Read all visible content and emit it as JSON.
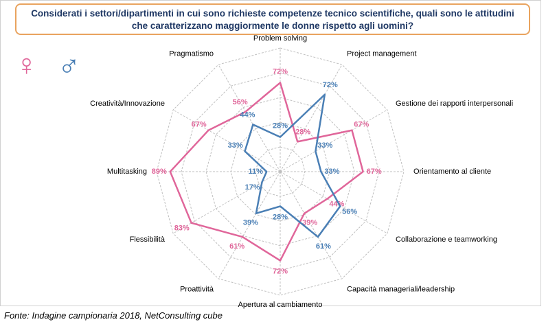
{
  "chart_data": {
    "type": "radar",
    "title": "Considerati i settori/dipartimenti in cui sono richieste competenze tecnico scientifiche, quali sono le attitudini che caratterizzano maggiormente le donne rispetto agli uomini?",
    "source": "Fonte: Indagine campionaria 2018, NetConsulting cube",
    "categories": [
      "Problem solving",
      "Project management",
      "Gestione dei rapporti interpersonali",
      "Orientamento al cliente",
      "Collaborazione e teamworking",
      "Capacità manageriali/leadership",
      "Apertura al cambiamento",
      "Proattività",
      "Flessibilità",
      "Multitasking",
      "Creatività/Innovazione",
      "Pragmatismo"
    ],
    "series": [
      {
        "name": "♀",
        "color": "#e0669a",
        "values": [
          72,
          28,
          67,
          67,
          44,
          39,
          72,
          61,
          83,
          89,
          67,
          56
        ],
        "value_labels": [
          "72%",
          "28%",
          "67%",
          "67%",
          "44%",
          "39%",
          "72%",
          "61%",
          "83%",
          "89%",
          "67%",
          "56%"
        ]
      },
      {
        "name": "♂",
        "color": "#4a7fb5",
        "values": [
          28,
          72,
          33,
          33,
          56,
          61,
          28,
          39,
          17,
          11,
          33,
          44
        ],
        "value_labels": [
          "28%",
          "72%",
          "33%",
          "33%",
          "56%",
          "61%",
          "28%",
          "39%",
          "17%",
          "11%",
          "33%",
          "44%"
        ]
      }
    ],
    "rlim": [
      0,
      100
    ],
    "rticks": [
      20,
      40,
      60,
      80,
      100
    ],
    "grid": true
  }
}
